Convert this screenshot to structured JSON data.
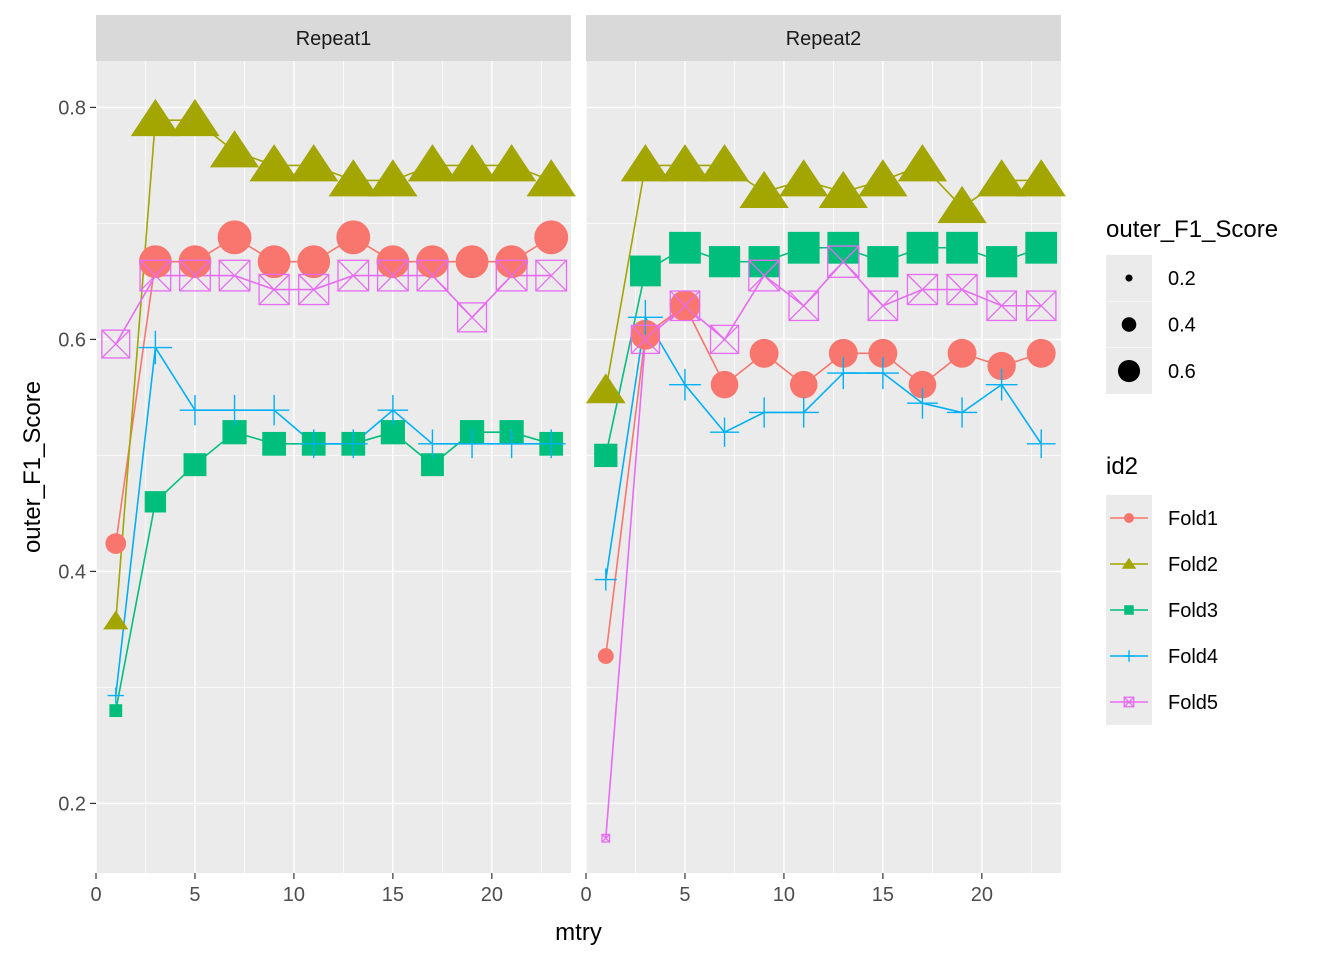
{
  "chart_data": {
    "type": "line",
    "xlabel": "mtry",
    "ylabel": "outer_F1_Score",
    "xlim": [
      0,
      24
    ],
    "ylim": [
      0.14,
      0.84
    ],
    "x_ticks": [
      0,
      5,
      10,
      15,
      20
    ],
    "y_ticks": [
      0.2,
      0.4,
      0.6,
      0.8
    ],
    "grid": true,
    "facet_labels": [
      "Repeat1",
      "Repeat2"
    ],
    "x": [
      1,
      3,
      5,
      7,
      9,
      11,
      13,
      15,
      17,
      19,
      21,
      23
    ],
    "colors": {
      "Fold1": "#F8766D",
      "Fold2": "#A3A500",
      "Fold3": "#00BF7D",
      "Fold4": "#00B0F6",
      "Fold5": "#E76BF3"
    },
    "shapes": {
      "Fold1": "circle",
      "Fold2": "triangle",
      "Fold3": "square",
      "Fold4": "plus",
      "Fold5": "boxed-x"
    },
    "facets": [
      {
        "name": "Repeat1",
        "series": [
          {
            "name": "Fold1",
            "values": [
              0.424,
              0.667,
              0.667,
              0.688,
              0.667,
              0.667,
              0.688,
              0.667,
              0.667,
              0.667,
              0.667,
              0.688
            ]
          },
          {
            "name": "Fold2",
            "values": [
              0.357,
              0.789,
              0.789,
              0.762,
              0.75,
              0.75,
              0.737,
              0.737,
              0.75,
              0.75,
              0.75,
              0.737
            ]
          },
          {
            "name": "Fold3",
            "values": [
              0.28,
              0.46,
              0.492,
              0.52,
              0.51,
              0.51,
              0.51,
              0.52,
              0.492,
              0.52,
              0.52,
              0.51
            ]
          },
          {
            "name": "Fold4",
            "values": [
              0.293,
              0.593,
              0.539,
              0.539,
              0.539,
              0.51,
              0.51,
              0.539,
              0.51,
              0.51,
              0.51,
              0.51
            ]
          },
          {
            "name": "Fold5",
            "values": [
              0.596,
              0.655,
              0.655,
              0.655,
              0.643,
              0.643,
              0.655,
              0.655,
              0.655,
              0.619,
              0.655,
              0.655
            ]
          }
        ]
      },
      {
        "name": "Repeat2",
        "series": [
          {
            "name": "Fold1",
            "values": [
              0.327,
              0.604,
              0.629,
              0.561,
              0.588,
              0.561,
              0.588,
              0.588,
              0.561,
              0.588,
              0.577,
              0.588
            ]
          },
          {
            "name": "Fold2",
            "values": [
              0.556,
              0.75,
              0.75,
              0.75,
              0.727,
              0.737,
              0.727,
              0.737,
              0.75,
              0.714,
              0.737,
              0.737
            ]
          },
          {
            "name": "Fold3",
            "values": [
              0.5,
              0.659,
              0.679,
              0.667,
              0.667,
              0.679,
              0.679,
              0.667,
              0.679,
              0.679,
              0.667,
              0.679
            ]
          },
          {
            "name": "Fold4",
            "values": [
              0.393,
              0.619,
              0.561,
              0.52,
              0.537,
              0.537,
              0.571,
              0.571,
              0.545,
              0.537,
              0.561,
              0.51
            ]
          },
          {
            "name": "Fold5",
            "values": [
              0.17,
              0.6,
              0.629,
              0.6,
              0.655,
              0.629,
              0.667,
              0.629,
              0.643,
              0.643,
              0.629,
              0.629
            ]
          }
        ]
      }
    ],
    "legend": {
      "size_title": "outer_F1_Score",
      "size_entries": [
        "0.2",
        "0.4",
        "0.6"
      ],
      "size_values": [
        0.2,
        0.4,
        0.6
      ],
      "color_title": "id2",
      "color_entries": [
        "Fold1",
        "Fold2",
        "Fold3",
        "Fold4",
        "Fold5"
      ],
      "position": "right"
    }
  }
}
